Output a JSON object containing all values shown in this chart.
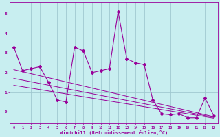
{
  "xlabel": "Windchill (Refroidissement éolien,°C)",
  "background_color": "#c8eef0",
  "grid_color": "#a0c8d0",
  "line_color": "#990099",
  "text_color": "#990099",
  "xlim": [
    -0.5,
    23.5
  ],
  "ylim": [
    -0.6,
    5.6
  ],
  "xticks": [
    0,
    1,
    2,
    3,
    4,
    5,
    6,
    7,
    8,
    9,
    10,
    11,
    12,
    13,
    14,
    15,
    16,
    17,
    18,
    19,
    20,
    21,
    22,
    23
  ],
  "yticks": [
    0,
    1,
    2,
    3,
    4,
    5
  ],
  "ytick_labels": [
    "-0",
    "1",
    "2",
    "3",
    "4",
    "5"
  ],
  "main_x": [
    0,
    1,
    2,
    3,
    4,
    5,
    6,
    7,
    8,
    9,
    10,
    11,
    12,
    13,
    14,
    15,
    16,
    17,
    18,
    19,
    20,
    21,
    22,
    23
  ],
  "main_y": [
    3.3,
    2.1,
    2.2,
    2.3,
    1.5,
    0.6,
    0.5,
    3.3,
    3.1,
    2.0,
    2.1,
    2.2,
    5.1,
    2.7,
    2.5,
    2.4,
    0.6,
    -0.1,
    -0.15,
    -0.1,
    -0.3,
    -0.3,
    0.7,
    -0.2
  ],
  "line1_x": [
    0,
    23
  ],
  "line1_y": [
    2.15,
    -0.25
  ],
  "line2_x": [
    0,
    23
  ],
  "line2_y": [
    1.7,
    -0.28
  ],
  "line3_x": [
    0,
    23
  ],
  "line3_y": [
    1.35,
    -0.32
  ]
}
